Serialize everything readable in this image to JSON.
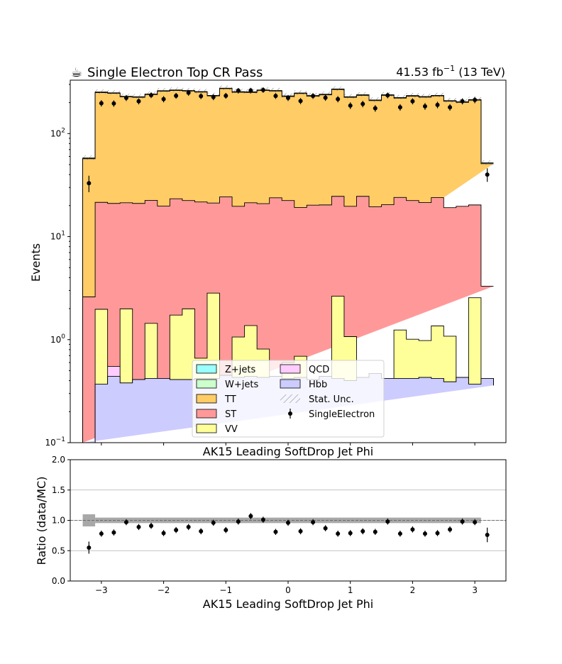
{
  "header": {
    "title_icon": "coffee-cup-icon",
    "title_glyph": "☕",
    "title": "Single Electron Top CR Pass",
    "lumi_main": "41.53 fb",
    "lumi_sup": "−1",
    "lumi_energy": " (13 TeV)"
  },
  "chart_data": [
    {
      "type": "bar",
      "stacked": true,
      "log_y": true,
      "xlabel": "AK15 Leading SoftDrop Jet Phi",
      "ylabel": "Events",
      "xlim": [
        -3.5,
        3.5
      ],
      "ylim": [
        0.1,
        330
      ],
      "x_ticks": [
        -3,
        -2,
        -1,
        0,
        1,
        2,
        3
      ],
      "x_tick_labels": [
        "−3",
        "−2",
        "−1",
        "0",
        "1",
        "2",
        "3"
      ],
      "y_ticks": [
        {
          "value": 0.1,
          "base": "10",
          "exp": "−1"
        },
        {
          "value": 1,
          "base": "10",
          "exp": "0"
        },
        {
          "value": 10,
          "base": "10",
          "exp": "1"
        },
        {
          "value": 100,
          "base": "10",
          "exp": "2"
        }
      ],
      "bin_edges": [
        -3.3,
        -3.1,
        -2.9,
        -2.7,
        -2.5,
        -2.3,
        -2.1,
        -1.9,
        -1.7,
        -1.5,
        -1.3,
        -1.1,
        -0.9,
        -0.7,
        -0.5,
        -0.3,
        -0.1,
        0.1,
        0.3,
        0.5,
        0.7,
        0.9,
        1.1,
        1.3,
        1.5,
        1.7,
        1.9,
        2.1,
        2.3,
        2.5,
        2.7,
        2.9,
        3.1,
        3.3
      ],
      "series": [
        {
          "name": "Hbb",
          "color": "#ccccff",
          "values": [
            0.1,
            0.37,
            0.44,
            0.38,
            0.41,
            0.42,
            0.42,
            0.41,
            0.41,
            0.42,
            0.42,
            0.45,
            0.43,
            0.44,
            0.43,
            0.44,
            0.42,
            0.43,
            0.41,
            0.44,
            0.42,
            0.4,
            0.43,
            0.47,
            0.42,
            0.42,
            0.42,
            0.43,
            0.42,
            0.39,
            0.43,
            0.37,
            0.42,
            0.36
          ]
        },
        {
          "name": "QCD",
          "color": "#ffccff",
          "values": [
            0.1,
            0.37,
            0.55,
            0.38,
            0.41,
            0.42,
            0.42,
            0.41,
            0.41,
            0.42,
            0.42,
            0.45,
            0.43,
            0.44,
            0.43,
            0.44,
            0.42,
            0.43,
            0.41,
            0.44,
            0.42,
            0.4,
            0.43,
            0.47,
            0.42,
            0.42,
            0.42,
            0.43,
            0.42,
            0.39,
            0.43,
            0.37,
            0.42,
            0.36
          ]
        },
        {
          "name": "VV",
          "color": "#ffff99",
          "values": [
            0.1,
            1.97,
            0.55,
            1.99,
            0.41,
            1.44,
            0.42,
            1.73,
            1.99,
            0.66,
            2.83,
            0.45,
            1.06,
            1.37,
            0.81,
            0.44,
            0.6,
            0.69,
            0.41,
            0.44,
            2.64,
            1.07,
            0.43,
            0.47,
            0.42,
            1.24,
            1.01,
            0.98,
            1.36,
            1.08,
            0.43,
            2.55,
            0.42,
            0.36
          ]
        },
        {
          "name": "ST",
          "color": "#ff9999",
          "values": [
            2.6,
            21.5,
            21.0,
            21.3,
            21.0,
            22.5,
            19.8,
            23.3,
            22.4,
            21.7,
            21.2,
            24.3,
            19.7,
            21.3,
            20.9,
            23.8,
            22.4,
            19.2,
            20.2,
            20.3,
            24.6,
            19.7,
            24.6,
            19.5,
            20.4,
            24.0,
            22.4,
            21.4,
            23.9,
            19.1,
            19.7,
            20.3,
            3.3,
            3.3
          ]
        },
        {
          "name": "TT",
          "color": "#ffcc66",
          "values": [
            57,
            250,
            246,
            227,
            225,
            239,
            258,
            262,
            259,
            253,
            232,
            273,
            252,
            251,
            262,
            259,
            229,
            245,
            231,
            238,
            268,
            225,
            235,
            209,
            235,
            221,
            231,
            226,
            232,
            206,
            201,
            211,
            51,
            51
          ]
        },
        {
          "name": "W+jets",
          "color": "#ccffcc",
          "values": [
            57,
            250,
            246,
            227,
            225,
            239,
            258,
            262,
            259,
            253,
            232,
            273,
            252,
            251,
            262,
            259,
            229,
            245,
            231,
            238,
            268,
            225,
            235,
            209,
            235,
            221,
            231,
            226,
            232,
            206,
            201,
            211,
            51,
            51
          ]
        },
        {
          "name": "Z+jets",
          "color": "#99ffff",
          "values": [
            58,
            253,
            249,
            230,
            228,
            242,
            261,
            265,
            262,
            256,
            235,
            276,
            255,
            254,
            265,
            262,
            232,
            248,
            234,
            241,
            271,
            228,
            238,
            212,
            238,
            224,
            234,
            229,
            235,
            209,
            204,
            214,
            52,
            52
          ]
        }
      ],
      "stat_unc": {
        "name": "Stat. Unc.",
        "hatch": "////"
      },
      "data": {
        "name": "SingleElectron",
        "x": [
          -3.2,
          -3.0,
          -2.8,
          -2.6,
          -2.4,
          -2.2,
          -2.0,
          -1.8,
          -1.6,
          -1.4,
          -1.2,
          -1.0,
          -0.8,
          -0.6,
          -0.4,
          -0.2,
          0.0,
          0.2,
          0.4,
          0.6,
          0.8,
          1.0,
          1.2,
          1.4,
          1.6,
          1.8,
          2.0,
          2.2,
          2.4,
          2.6,
          2.8,
          3.0,
          3.2
        ],
        "y": [
          33,
          197,
          196,
          222,
          206,
          236,
          216,
          233,
          249,
          231,
          226,
          233,
          261,
          262,
          265,
          232,
          222,
          207,
          232,
          223,
          216,
          187,
          194,
          176,
          235,
          180,
          206,
          184,
          190,
          180,
          206,
          212,
          40
        ],
        "err": [
          6,
          14,
          14,
          15,
          14,
          15,
          15,
          15,
          16,
          15,
          15,
          15,
          16,
          16,
          16,
          15,
          15,
          14,
          15,
          15,
          15,
          14,
          14,
          13,
          15,
          13,
          14,
          14,
          14,
          13,
          14,
          15,
          6
        ]
      },
      "legend": {
        "location": "lower center",
        "entries": [
          "Z+jets",
          "QCD",
          "W+jets",
          "Hbb",
          "TT",
          "Stat. Unc.",
          "ST",
          "SingleElectron",
          "VV"
        ]
      }
    },
    {
      "type": "scatter",
      "xlabel": "AK15 Leading SoftDrop Jet Phi",
      "ylabel": "Ratio (data/MC)",
      "xlim": [
        -3.5,
        3.5
      ],
      "ylim": [
        0,
        2
      ],
      "x_ticks": [
        -3,
        -2,
        -1,
        0,
        1,
        2,
        3
      ],
      "x_tick_labels": [
        "−3",
        "−2",
        "−1",
        "0",
        "1",
        "2",
        "3"
      ],
      "y_ticks": [
        0,
        0.5,
        1,
        1.5,
        2
      ],
      "y_tick_labels": [
        "0.0",
        "0.5",
        "1.0",
        "1.5",
        "2.0"
      ],
      "grid_y": true,
      "reference_line": 1.0,
      "unc_band": {
        "edges": [
          -3.3,
          -3.1,
          3.1
        ],
        "halfwidth": [
          0.1,
          0.045
        ]
      },
      "x": [
        -3.2,
        -3.0,
        -2.8,
        -2.6,
        -2.4,
        -2.2,
        -2.0,
        -1.8,
        -1.6,
        -1.4,
        -1.2,
        -1.0,
        -0.8,
        -0.6,
        -0.4,
        -0.2,
        0.0,
        0.2,
        0.4,
        0.6,
        0.8,
        1.0,
        1.2,
        1.4,
        1.6,
        1.8,
        2.0,
        2.2,
        2.4,
        2.6,
        2.8,
        3.0,
        3.2
      ],
      "y": [
        0.55,
        0.78,
        0.8,
        0.97,
        0.89,
        0.91,
        0.79,
        0.84,
        0.89,
        0.82,
        0.96,
        0.84,
        0.98,
        1.07,
        1.01,
        0.81,
        0.96,
        0.82,
        0.97,
        0.87,
        0.78,
        0.79,
        0.82,
        0.81,
        0.98,
        0.78,
        0.85,
        0.78,
        0.79,
        0.85,
        0.98,
        0.97,
        0.76
      ],
      "err": [
        0.1,
        0.05,
        0.05,
        0.05,
        0.05,
        0.05,
        0.05,
        0.05,
        0.05,
        0.05,
        0.05,
        0.05,
        0.05,
        0.05,
        0.05,
        0.05,
        0.05,
        0.05,
        0.05,
        0.05,
        0.05,
        0.05,
        0.05,
        0.05,
        0.05,
        0.05,
        0.05,
        0.05,
        0.05,
        0.05,
        0.05,
        0.05,
        0.12
      ]
    }
  ]
}
